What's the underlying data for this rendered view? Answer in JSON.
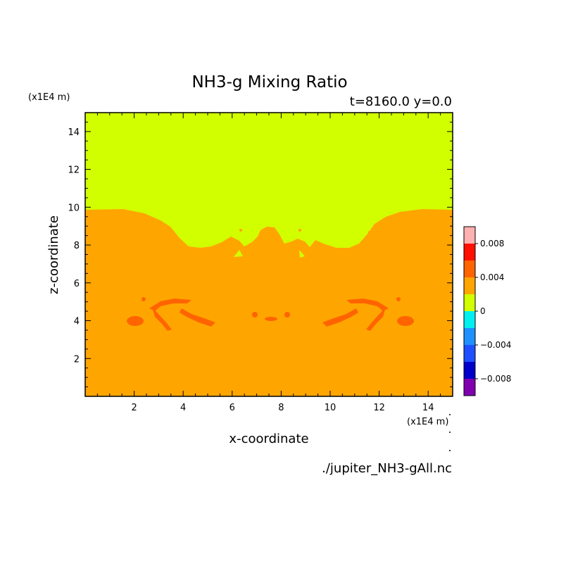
{
  "chart_data": {
    "type": "heatmap",
    "title": "NH3-g Mixing Ratio",
    "subtitle": "t=8160.0 y=0.0",
    "xlabel": "x-coordinate",
    "ylabel": "z-coordinate",
    "x_unit": "(x1E4 m)",
    "y_unit": "(x1E4 m)",
    "xlim": [
      0,
      15
    ],
    "ylim": [
      0,
      15
    ],
    "x_ticks": [
      2,
      4,
      6,
      8,
      10,
      12,
      14
    ],
    "y_ticks": [
      2,
      4,
      6,
      8,
      10,
      12,
      14
    ],
    "grid": false,
    "colorbar": {
      "placement": "right",
      "range": [
        -0.01,
        0.01
      ],
      "bin_edges": [
        -0.01,
        -0.008,
        -0.006,
        -0.004,
        -0.002,
        0,
        0.002,
        0.004,
        0.006,
        0.008,
        0.01
      ],
      "colors": [
        "#8000b0",
        "#0000c8",
        "#1e50ff",
        "#1e90ff",
        "#00f0f0",
        "#d2ff00",
        "#ffa500",
        "#ff6400",
        "#ff1000",
        "#ffb0b0"
      ],
      "tick_values": [
        0.008,
        0.004,
        0,
        -0.004,
        -0.008
      ],
      "tick_labels": [
        "0.008",
        "0.004",
        "0",
        "−0.004",
        "−0.008"
      ]
    },
    "regions": [
      {
        "level": "0 to 0.002",
        "color": "#d2ff00",
        "extent": "upper domain, above z ~ 8 to 9.8"
      },
      {
        "level": "0.002 to 0.004",
        "color": "#ffa500",
        "extent": "lower domain, below z ~ 9.8"
      },
      {
        "level": "0.004 to 0.006",
        "color": "#ff6400",
        "extent": "filaments near z ~ 4 to 5"
      }
    ]
  },
  "footer": {
    "source": "./jupiter_NH3-gAll.nc"
  }
}
